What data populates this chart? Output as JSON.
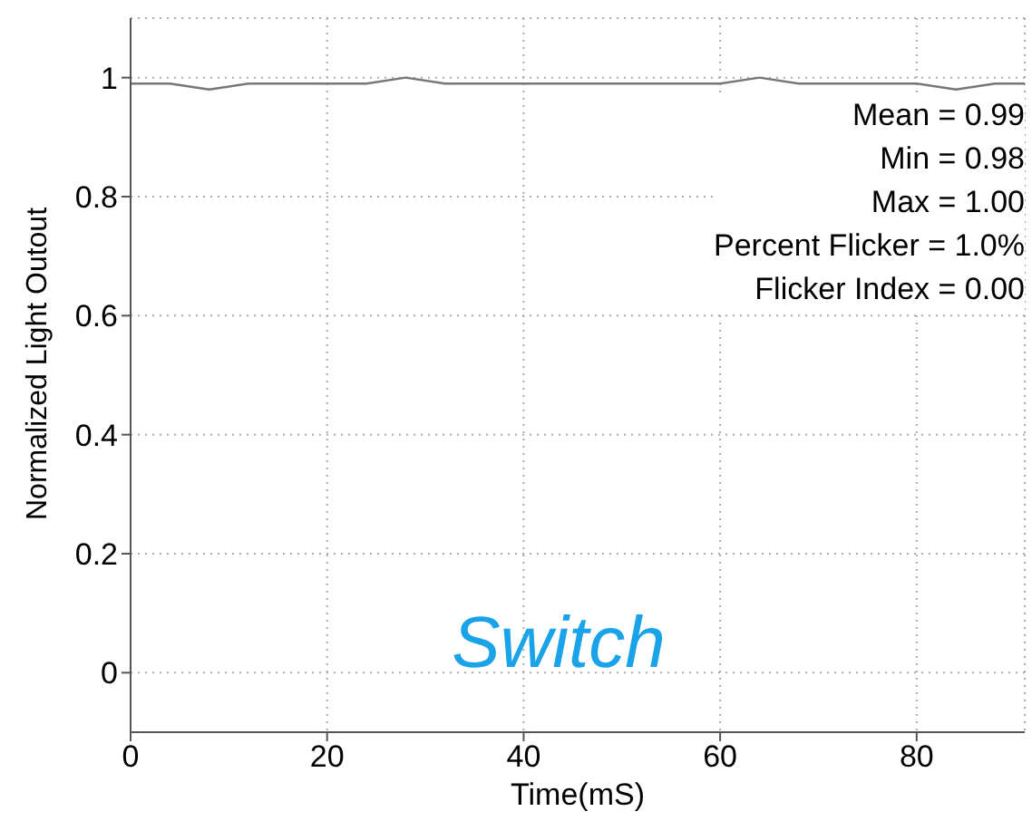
{
  "chart_data": {
    "type": "line",
    "xlabel": "Time(mS)",
    "ylabel": "Normalized Light Outout",
    "x": [
      0,
      4,
      8,
      12,
      16,
      20,
      24,
      28,
      32,
      36,
      40,
      44,
      48,
      52,
      56,
      60,
      64,
      68,
      72,
      76,
      80,
      84,
      88,
      91
    ],
    "series": [
      {
        "color": "#777777",
        "values": [
          0.99,
          0.99,
          0.98,
          0.99,
          0.99,
          0.99,
          0.99,
          1.0,
          0.99,
          0.99,
          0.99,
          0.99,
          0.99,
          0.99,
          0.99,
          0.99,
          1.0,
          0.99,
          0.99,
          0.99,
          0.99,
          0.98,
          0.99,
          0.99
        ]
      }
    ],
    "xlim": [
      0,
      91
    ],
    "xticks": [
      0,
      20,
      40,
      60,
      80
    ],
    "ylim": [
      -0.1,
      1.1
    ],
    "yticks": [
      0,
      0.2,
      0.4,
      0.6,
      0.8,
      1
    ],
    "grid": true,
    "marker": "none",
    "line_style": "solid",
    "legend": false,
    "annotations": [
      "Mean = 0.99",
      "Min = 0.98",
      "Max = 1.00",
      "Percent Flicker = 1.0%",
      "Flicker Index = 0.00",
      "Switch"
    ]
  }
}
